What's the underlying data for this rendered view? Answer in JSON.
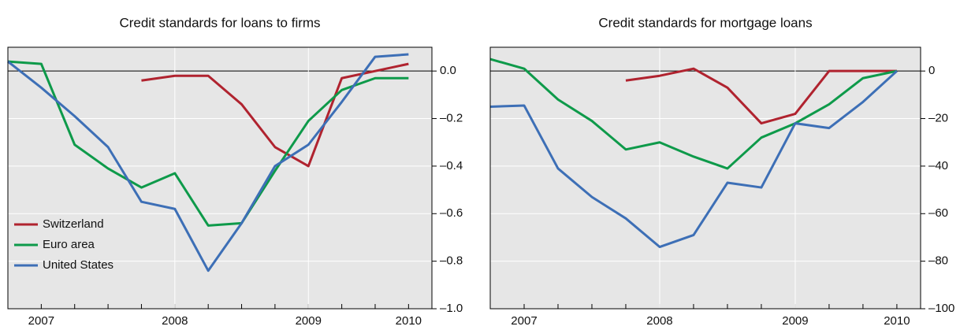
{
  "chart_data": [
    {
      "type": "line",
      "title": "Credit standards for loans to firms",
      "categories": [
        null,
        "2007",
        null,
        null,
        null,
        "2008",
        null,
        null,
        null,
        "2009",
        null,
        null,
        "2010"
      ],
      "series": [
        {
          "name": "Switzerland",
          "color": "#b0232f",
          "values": [
            null,
            null,
            null,
            null,
            -0.04,
            -0.02,
            -0.02,
            -0.14,
            -0.32,
            -0.4,
            -0.03,
            0.0,
            0.03
          ]
        },
        {
          "name": "Euro area",
          "color": "#0e9a4a",
          "values": [
            0.04,
            0.03,
            -0.31,
            -0.41,
            -0.49,
            -0.43,
            -0.65,
            -0.64,
            -0.42,
            -0.21,
            -0.08,
            -0.03,
            -0.03
          ]
        },
        {
          "name": "United States",
          "color": "#3d6fb6",
          "values": [
            0.04,
            -0.07,
            -0.19,
            -0.32,
            -0.55,
            -0.58,
            -0.84,
            -0.64,
            -0.4,
            -0.31,
            -0.13,
            0.06,
            0.07
          ]
        }
      ],
      "ylim": [
        -1.0,
        0.1
      ],
      "yticks": [
        {
          "value": 0,
          "label": "0.0"
        },
        {
          "value": -0.2,
          "label": "–0.2"
        },
        {
          "value": -0.4,
          "label": "–0.4"
        },
        {
          "value": -0.6,
          "label": "–0.6"
        },
        {
          "value": -0.8,
          "label": "–0.8"
        },
        {
          "value": -1.0,
          "label": "–1.0"
        }
      ],
      "grid": true,
      "legend": "lower left"
    },
    {
      "type": "line",
      "title": "Credit standards for mortgage loans",
      "categories": [
        null,
        "2007",
        null,
        null,
        null,
        "2008",
        null,
        null,
        null,
        "2009",
        null,
        null,
        "2010"
      ],
      "series": [
        {
          "name": "Switzerland",
          "color": "#b0232f",
          "values": [
            null,
            null,
            null,
            null,
            -4,
            -2,
            1,
            -7,
            -22,
            -18,
            0,
            0,
            0
          ]
        },
        {
          "name": "Euro area",
          "color": "#0e9a4a",
          "values": [
            5,
            1,
            -12,
            -21,
            -33,
            -30,
            -36,
            -41,
            -28,
            -22,
            -14,
            -3,
            0
          ]
        },
        {
          "name": "United States",
          "color": "#3d6fb6",
          "values": [
            -15,
            -14.5,
            -41,
            -53,
            -62,
            -74,
            -69,
            -47,
            -49,
            -22,
            -24,
            -13,
            0
          ]
        }
      ],
      "ylim": [
        -100,
        10
      ],
      "yticks": [
        0,
        {
          "value": -20,
          "label": "–20"
        },
        {
          "value": -40,
          "label": "–40"
        },
        {
          "value": -60,
          "label": "–60"
        },
        {
          "value": -80,
          "label": "–80"
        },
        {
          "value": -100,
          "label": "–100"
        }
      ],
      "grid": true
    }
  ]
}
